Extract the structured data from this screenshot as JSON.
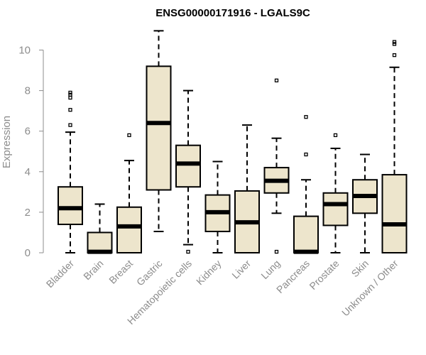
{
  "chart_data": {
    "type": "boxplot",
    "title": "ENSG00000171916 - LGALS9C",
    "xlabel": "",
    "ylabel": "Expression",
    "ylim": [
      0,
      11
    ],
    "yticks": [
      0,
      2,
      4,
      6,
      8,
      10
    ],
    "box_fill": "#ede5cc",
    "categories": [
      "Bladder",
      "Brain",
      "Breast",
      "Gastric",
      "Hematopoietic cells",
      "Kidney",
      "Liver",
      "Lung",
      "Pancreas",
      "Prostate",
      "Skin",
      "Unknown / Other"
    ],
    "boxes": [
      {
        "name": "Bladder",
        "whisker_low": 0,
        "q1": 1.4,
        "median": 2.2,
        "q3": 3.25,
        "whisker_high": 5.95,
        "outliers": [
          6.3,
          7.05,
          7.65,
          7.8,
          7.9
        ]
      },
      {
        "name": "Brain",
        "whisker_low": 0,
        "q1": 0,
        "median": 0.05,
        "q3": 1.0,
        "whisker_high": 2.4,
        "outliers": []
      },
      {
        "name": "Breast",
        "whisker_low": 0,
        "q1": 0,
        "median": 1.3,
        "q3": 2.25,
        "whisker_high": 4.55,
        "outliers": [
          5.8
        ]
      },
      {
        "name": "Gastric",
        "whisker_low": 1.05,
        "q1": 3.1,
        "median": 6.4,
        "q3": 9.2,
        "whisker_high": 10.95,
        "outliers": []
      },
      {
        "name": "Hematopoietic cells",
        "whisker_low": 0.4,
        "q1": 3.25,
        "median": 4.4,
        "q3": 5.3,
        "whisker_high": 8.0,
        "outliers": [
          0.05
        ]
      },
      {
        "name": "Kidney",
        "whisker_low": 0,
        "q1": 1.05,
        "median": 2.0,
        "q3": 2.85,
        "whisker_high": 4.5,
        "outliers": []
      },
      {
        "name": "Liver",
        "whisker_low": 0,
        "q1": 0,
        "median": 1.5,
        "q3": 3.05,
        "whisker_high": 6.3,
        "outliers": []
      },
      {
        "name": "Lung",
        "whisker_low": 1.95,
        "q1": 2.95,
        "median": 3.55,
        "q3": 4.2,
        "whisker_high": 5.65,
        "outliers": [
          0.05,
          8.5
        ]
      },
      {
        "name": "Pancreas",
        "whisker_low": 0,
        "q1": 0,
        "median": 0.05,
        "q3": 1.8,
        "whisker_high": 3.6,
        "outliers": [
          4.85,
          6.7
        ]
      },
      {
        "name": "Prostate",
        "whisker_low": 0,
        "q1": 1.35,
        "median": 2.4,
        "q3": 2.95,
        "whisker_high": 5.15,
        "outliers": [
          5.8
        ]
      },
      {
        "name": "Skin",
        "whisker_low": 0,
        "q1": 1.95,
        "median": 2.8,
        "q3": 3.6,
        "whisker_high": 4.85,
        "outliers": []
      },
      {
        "name": "Unknown / Other",
        "whisker_low": 0,
        "q1": 0,
        "median": 1.4,
        "q3": 3.85,
        "whisker_high": 9.15,
        "outliers": [
          9.75,
          10.3,
          10.4
        ]
      }
    ]
  }
}
